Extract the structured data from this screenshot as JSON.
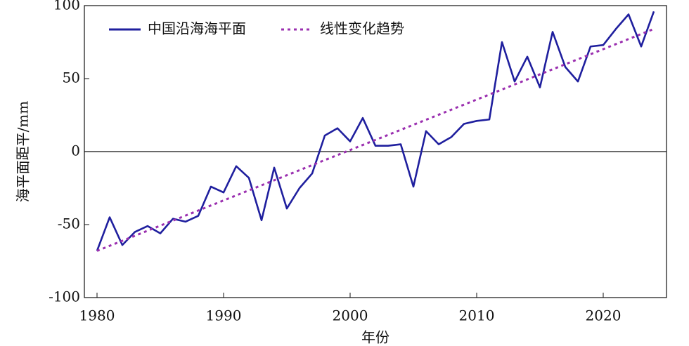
{
  "chart_data": {
    "type": "line",
    "xlabel": "年份",
    "ylabel": "海平面距平/mm",
    "x": [
      1980,
      1981,
      1982,
      1983,
      1984,
      1985,
      1986,
      1987,
      1988,
      1989,
      1990,
      1991,
      1992,
      1993,
      1994,
      1995,
      1996,
      1997,
      1998,
      1999,
      2000,
      2001,
      2002,
      2003,
      2004,
      2005,
      2006,
      2007,
      2008,
      2009,
      2010,
      2011,
      2012,
      2013,
      2014,
      2015,
      2016,
      2017,
      2018,
      2019,
      2020,
      2021,
      2022,
      2023,
      2024
    ],
    "series": [
      {
        "name": "中国沿海海平面",
        "color": "#1f1f9e",
        "values": [
          -68,
          -45,
          -64,
          -55,
          -51,
          -56,
          -46,
          -48,
          -44,
          -24,
          -28,
          -10,
          -18,
          -47,
          -11,
          -39,
          -25,
          -15,
          11,
          16,
          7,
          23,
          4,
          4,
          5,
          -24,
          14,
          5,
          10,
          19,
          21,
          22,
          75,
          48,
          65,
          44,
          82,
          58,
          48,
          72,
          73,
          84,
          94,
          72,
          96
        ]
      },
      {
        "name": "线性变化趋势",
        "color": "#9b30b0",
        "dashed": true,
        "x": [
          1980,
          2024
        ],
        "values": [
          -68,
          84
        ]
      }
    ],
    "xlim": [
      1979,
      2025
    ],
    "xticks": [
      1980,
      1990,
      2000,
      2010,
      2020
    ],
    "ylim": [
      -100,
      100
    ],
    "yticks": [
      -100,
      -50,
      0,
      50,
      100
    ],
    "zero_line": true,
    "legend": "top-left"
  }
}
